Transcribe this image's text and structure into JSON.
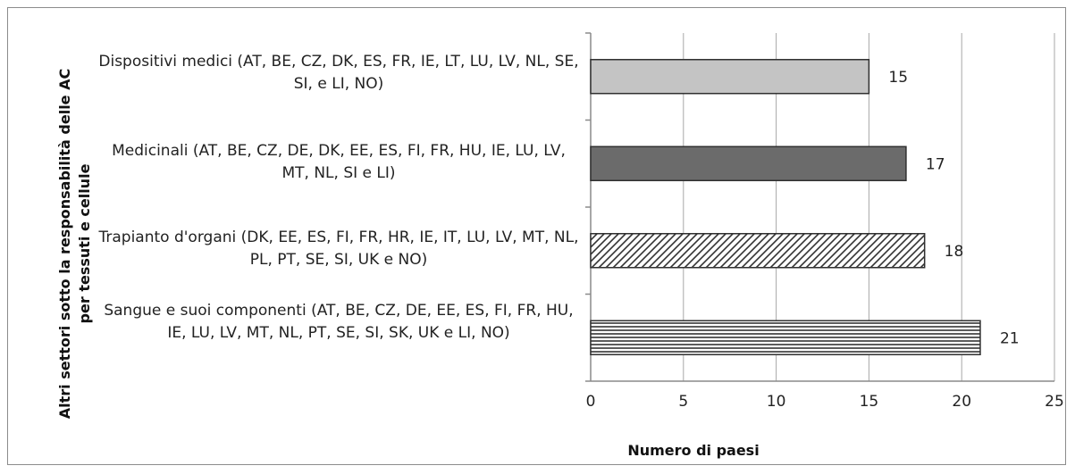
{
  "chart_data": {
    "type": "bar",
    "orientation": "horizontal",
    "categories": [
      "Dispositivi medici (AT, BE, CZ, DK, ES, FR, IE, LT, LU, LV, NL, SE, SI, e LI, NO)",
      "Medicinali  (AT, BE, CZ, DE, DK, EE, ES, FI, FR, HU, IE, LU, LV, MT, NL, SI e LI)",
      "Trapianto d'organi (DK, EE, ES, FI, FR, HR, IE, IT, LU, LV, MT, NL, PL, PT, SE, SI, UK e NO)",
      "Sangue e suoi componenti  (AT, BE, CZ, DE, EE, ES, FI, FR, HU, IE, LU, LV, MT, NL, PT, SE, SI, SK, UK e LI, NO)"
    ],
    "values": [
      15,
      17,
      18,
      21
    ],
    "data_labels": [
      "15",
      "17",
      "18",
      "21"
    ],
    "bar_styles": [
      "light-gray",
      "dark-gray",
      "diagonal-hatch",
      "horizontal-hatch"
    ],
    "xlabel": "Numero di paesi",
    "ylabel": "Altri settori sotto la responsabilità delle AC per tessuti e cellule",
    "xlim": [
      0,
      25
    ],
    "xticks": [
      "0",
      "5",
      "10",
      "15",
      "20",
      "25"
    ],
    "grid": "vertical",
    "legend": "none"
  },
  "colors": {
    "light_bar": "#c4c4c4",
    "dark_bar": "#6b6b6b",
    "outline": "#303030",
    "grid": "#a8a8a8",
    "hatch": "#333333"
  }
}
